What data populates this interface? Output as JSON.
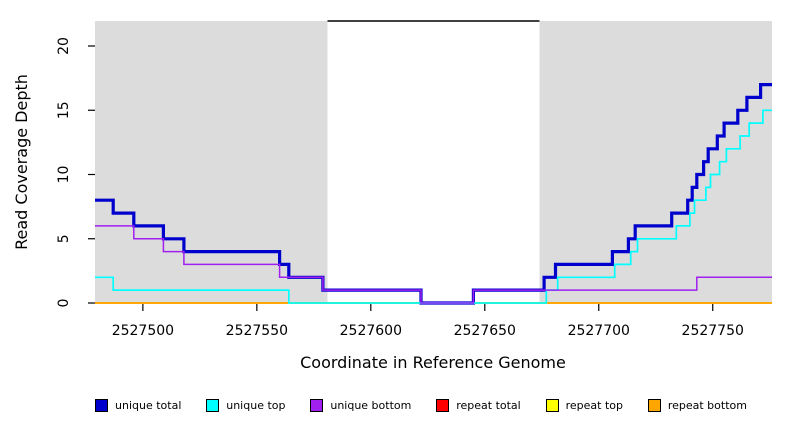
{
  "chart_data": {
    "type": "line",
    "subtype": "step",
    "title": "",
    "xlabel": "Coordinate in Reference Genome",
    "ylabel": "Read Coverage Depth",
    "xlim": [
      2527479,
      2527776
    ],
    "ylim": [
      0,
      22
    ],
    "x_ticks": [
      2527500,
      2527550,
      2527600,
      2527650,
      2527700,
      2527750
    ],
    "y_ticks": [
      0,
      5,
      10,
      15,
      20
    ],
    "grid": false,
    "legend_position": "bottom",
    "background_color": "#ffffff",
    "shaded_regions": [
      {
        "x_start": 2527479,
        "x_end": 2527581,
        "color": "#DCDCDC"
      },
      {
        "x_start": 2527674,
        "x_end": 2527776,
        "color": "#DCDCDC"
      }
    ],
    "gap_marker": {
      "x_start": 2527581,
      "x_end": 2527674,
      "y": 22,
      "color": "#000000"
    },
    "draw_order": [
      "repeat total",
      "repeat top",
      "repeat bottom",
      "unique total",
      "unique top",
      "unique bottom"
    ],
    "series": [
      {
        "name": "unique total",
        "color": "#0000CD",
        "line_width": 3.2,
        "steps": [
          [
            2527479,
            8
          ],
          [
            2527487,
            7
          ],
          [
            2527496,
            6
          ],
          [
            2527509,
            5
          ],
          [
            2527518,
            4
          ],
          [
            2527560,
            3
          ],
          [
            2527564,
            2
          ],
          [
            2527579,
            1
          ],
          [
            2527622,
            0
          ],
          [
            2527645,
            1
          ],
          [
            2527676,
            2
          ],
          [
            2527681,
            3
          ],
          [
            2527706,
            4
          ],
          [
            2527713,
            5
          ],
          [
            2527716,
            6
          ],
          [
            2527732,
            7
          ],
          [
            2527739,
            8
          ],
          [
            2527741,
            9
          ],
          [
            2527743,
            10
          ],
          [
            2527746,
            11
          ],
          [
            2527748,
            12
          ],
          [
            2527752,
            13
          ],
          [
            2527755,
            14
          ],
          [
            2527761,
            15
          ],
          [
            2527765,
            16
          ],
          [
            2527771,
            17
          ]
        ]
      },
      {
        "name": "unique top",
        "color": "#00FFFF",
        "line_width": 1.7,
        "steps": [
          [
            2527479,
            2
          ],
          [
            2527487,
            1
          ],
          [
            2527564,
            0
          ],
          [
            2527677,
            1
          ],
          [
            2527682,
            2
          ],
          [
            2527707,
            3
          ],
          [
            2527714,
            4
          ],
          [
            2527717,
            5
          ],
          [
            2527734,
            6
          ],
          [
            2527740,
            7
          ],
          [
            2527742,
            8
          ],
          [
            2527747,
            9
          ],
          [
            2527749,
            10
          ],
          [
            2527753,
            11
          ],
          [
            2527756,
            12
          ],
          [
            2527762,
            13
          ],
          [
            2527766,
            14
          ],
          [
            2527772,
            15
          ]
        ]
      },
      {
        "name": "unique bottom",
        "color": "#A020F0",
        "line_width": 1.5,
        "steps": [
          [
            2527479,
            6
          ],
          [
            2527496,
            5
          ],
          [
            2527509,
            4
          ],
          [
            2527518,
            3
          ],
          [
            2527560,
            2
          ],
          [
            2527579,
            1
          ],
          [
            2527622,
            0
          ],
          [
            2527645,
            1
          ],
          [
            2527743,
            2
          ]
        ]
      },
      {
        "name": "repeat total",
        "color": "#FF0000",
        "line_width": 1.5,
        "steps": [
          [
            2527479,
            0
          ]
        ]
      },
      {
        "name": "repeat top",
        "color": "#FFFF00",
        "line_width": 1.5,
        "steps": [
          [
            2527479,
            0
          ]
        ]
      },
      {
        "name": "repeat bottom",
        "color": "#FFA500",
        "line_width": 1.8,
        "steps": [
          [
            2527479,
            0
          ]
        ]
      }
    ]
  }
}
